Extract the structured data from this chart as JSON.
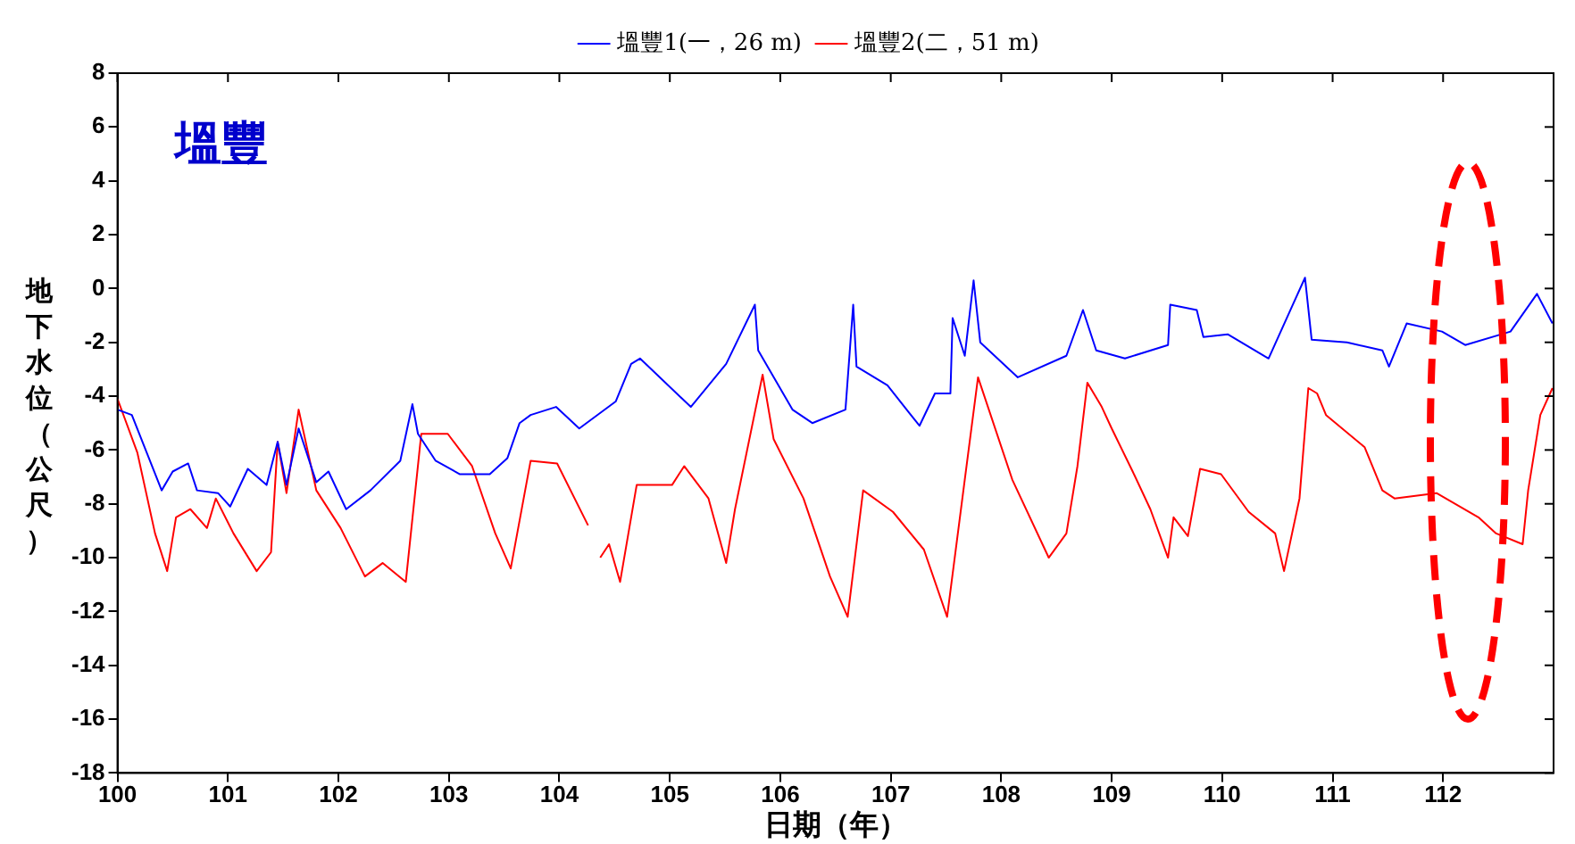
{
  "chart_data": {
    "type": "line",
    "xlabel": "日期（年）",
    "ylabel": "地下水位（公尺）",
    "annotations": [
      "塭豐"
    ],
    "xlim": [
      100,
      113
    ],
    "xticks": [
      100,
      101,
      102,
      103,
      104,
      105,
      106,
      107,
      108,
      109,
      110,
      111,
      112
    ],
    "ylim": [
      -18,
      8
    ],
    "yticks": [
      -18,
      -16,
      -14,
      -12,
      -10,
      -8,
      -6,
      -4,
      -2,
      0,
      2,
      4,
      6,
      8
    ],
    "grid": false,
    "legend": "top",
    "marker": "none",
    "line_style": "solid",
    "series": [
      {
        "name": "塭豐1(一，26 m)",
        "color": "#0000ff",
        "x": [
          100.0,
          100.13,
          100.4,
          100.5,
          100.64,
          100.72,
          100.91,
          101.02,
          101.18,
          101.35,
          101.45,
          101.53,
          101.64,
          101.8,
          101.91,
          102.07,
          102.29,
          102.56,
          102.67,
          102.72,
          102.88,
          103.1,
          103.37,
          103.53,
          103.64,
          103.74,
          103.97,
          104.18,
          104.51,
          104.65,
          104.73,
          105.19,
          105.51,
          105.77,
          105.8,
          106.11,
          106.29,
          106.59,
          106.66,
          106.69,
          106.97,
          107.26,
          107.4,
          107.54,
          107.56,
          107.67,
          107.75,
          107.81,
          108.15,
          108.59,
          108.74,
          108.86,
          109.12,
          109.51,
          109.53,
          109.77,
          109.83,
          110.05,
          110.42,
          110.64,
          110.75,
          110.81,
          111.13,
          111.45,
          111.51,
          111.67,
          111.99,
          112.2,
          112.61,
          112.85,
          112.99
        ],
        "values": [
          -4.5,
          -4.7,
          -7.5,
          -6.8,
          -6.5,
          -7.5,
          -7.6,
          -8.1,
          -6.7,
          -7.3,
          -5.7,
          -7.3,
          -5.2,
          -7.2,
          -6.8,
          -8.2,
          -7.5,
          -6.4,
          -4.3,
          -5.4,
          -6.4,
          -6.9,
          -6.9,
          -6.3,
          -5.0,
          -4.7,
          -4.4,
          -5.2,
          -4.2,
          -2.8,
          -2.6,
          -4.4,
          -2.8,
          -0.6,
          -2.3,
          -4.5,
          -5.0,
          -4.5,
          -0.6,
          -2.9,
          -3.6,
          -5.1,
          -3.9,
          -3.9,
          -1.1,
          -2.5,
          0.3,
          -2.0,
          -3.3,
          -2.5,
          -0.8,
          -2.3,
          -2.6,
          -2.1,
          -0.6,
          -0.8,
          -1.8,
          -1.7,
          -2.6,
          -0.6,
          0.4,
          -1.9,
          -2.0,
          -2.3,
          -2.9,
          -1.3,
          -1.6,
          -2.1,
          -1.6,
          -0.2,
          -1.3
        ]
      },
      {
        "name": "塭豐2(二，51 m)",
        "color": "#ff0000",
        "x": [
          100.0,
          100.18,
          100.34,
          100.45,
          100.53,
          100.66,
          100.81,
          100.89,
          101.05,
          101.26,
          101.39,
          101.45,
          101.53,
          101.64,
          101.8,
          102.02,
          102.24,
          102.4,
          102.61,
          102.75,
          102.99,
          103.21,
          103.42,
          103.56,
          103.74,
          103.98,
          104.26,
          104.3,
          104.37,
          104.45,
          104.55,
          104.7,
          105.02,
          105.13,
          105.35,
          105.51,
          105.59,
          105.84,
          105.94,
          106.21,
          106.45,
          106.61,
          106.75,
          107.02,
          107.3,
          107.51,
          107.67,
          107.79,
          108.1,
          108.43,
          108.59,
          108.69,
          108.78,
          108.91,
          109.0,
          109.19,
          109.35,
          109.51,
          109.56,
          109.69,
          109.8,
          109.99,
          110.24,
          110.48,
          110.56,
          110.7,
          110.78,
          110.86,
          110.94,
          111.29,
          111.45,
          111.56,
          111.94,
          112.32,
          112.48,
          112.72,
          112.77,
          112.88,
          112.99
        ],
        "values": [
          -4.1,
          -6.1,
          -9.1,
          -10.5,
          -8.5,
          -8.2,
          -8.9,
          -7.8,
          -9.1,
          -10.5,
          -9.8,
          -5.7,
          -7.6,
          -4.5,
          -7.5,
          -8.9,
          -10.7,
          -10.2,
          -10.9,
          -5.4,
          -5.4,
          -6.6,
          -9.1,
          -10.4,
          -6.4,
          -6.5,
          -8.8,
          null,
          -10.0,
          -9.5,
          -10.9,
          -7.3,
          -7.3,
          -6.6,
          -7.8,
          -10.2,
          -8.2,
          -3.2,
          -5.6,
          -7.8,
          -10.7,
          -12.2,
          -7.5,
          -8.3,
          -9.7,
          -12.2,
          -7.1,
          -3.3,
          -7.1,
          -10.0,
          -9.1,
          -6.6,
          -3.5,
          -4.4,
          -5.2,
          -6.8,
          -8.2,
          -10.0,
          -8.5,
          -9.2,
          -6.7,
          -6.9,
          -8.3,
          -9.1,
          -10.5,
          -7.8,
          -3.7,
          -3.9,
          -4.7,
          -5.9,
          -7.5,
          -7.8,
          -7.6,
          -8.5,
          -9.1,
          -9.5,
          -7.5,
          -4.7,
          -3.7
        ]
      }
    ]
  }
}
